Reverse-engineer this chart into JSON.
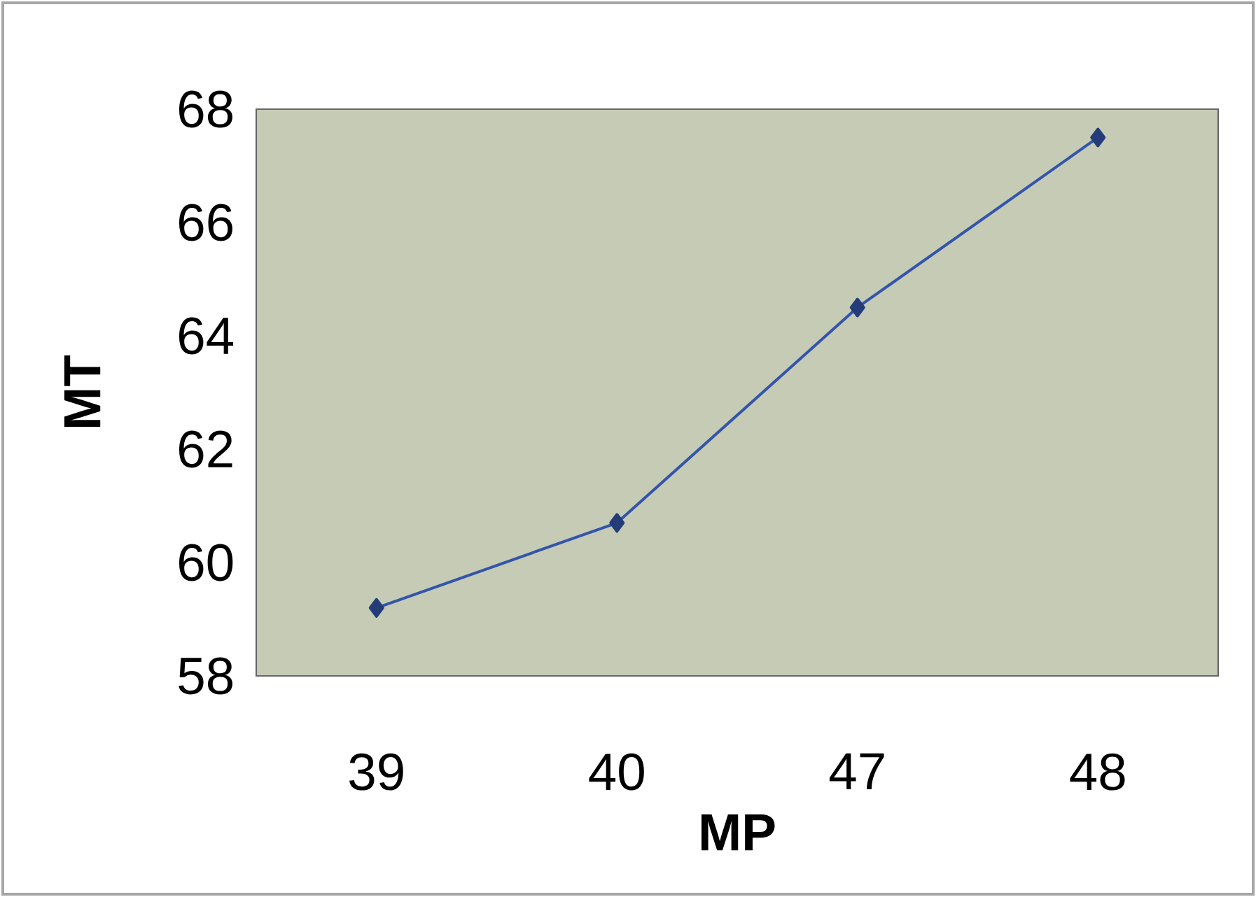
{
  "chart_data": {
    "type": "line",
    "xlabel": "MP",
    "ylabel": "MT",
    "categories": [
      "39",
      "40",
      "47",
      "48"
    ],
    "series": [
      {
        "color": "#3355aa",
        "values": [
          59.2,
          60.7,
          64.5,
          67.5
        ]
      }
    ],
    "ylim": [
      58,
      68
    ],
    "yticks": [
      58,
      60,
      62,
      64,
      66,
      68
    ],
    "grid": false,
    "marker": "diamond",
    "line_style": "solid"
  }
}
